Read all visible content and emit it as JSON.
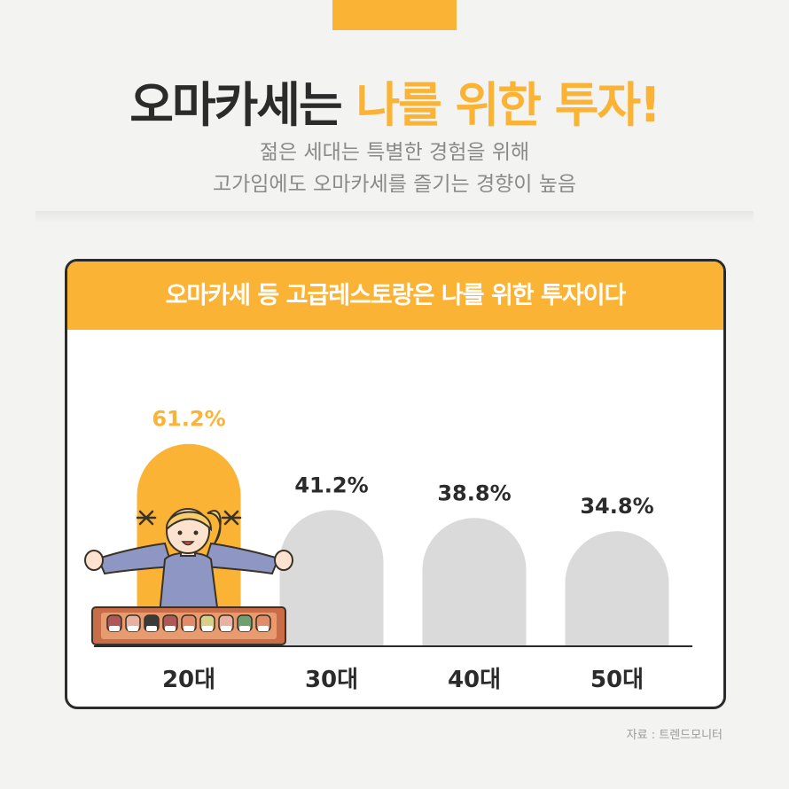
{
  "header": {
    "headline_dark": "오마카세는 ",
    "headline_accent": "나를 위한 투자!",
    "subtitle_line1": "젊은 세대는 특별한 경험을 위해",
    "subtitle_line2": "고가임에도 오마카세를 즐기는 경향이 높음"
  },
  "colors": {
    "accent": "#fbb336",
    "bar_gray": "#dadada",
    "text_dark": "#2b2b2b"
  },
  "chart_data": {
    "type": "bar",
    "title": "오마카세 등 고급레스토랑은 나를 위한 투자이다",
    "categories": [
      "20대",
      "30대",
      "40대",
      "50대"
    ],
    "values": [
      61.2,
      41.2,
      38.8,
      34.8
    ],
    "value_labels": [
      "61.2%",
      "41.2%",
      "38.8%",
      "34.8%"
    ],
    "highlight_index": 0,
    "ylim": [
      0,
      70
    ],
    "grid": false,
    "xlabel": "",
    "ylabel": ""
  },
  "illustration": {
    "icon": "omakase-chef-woman-illustration"
  },
  "source": "자료 : 트렌드모니터"
}
